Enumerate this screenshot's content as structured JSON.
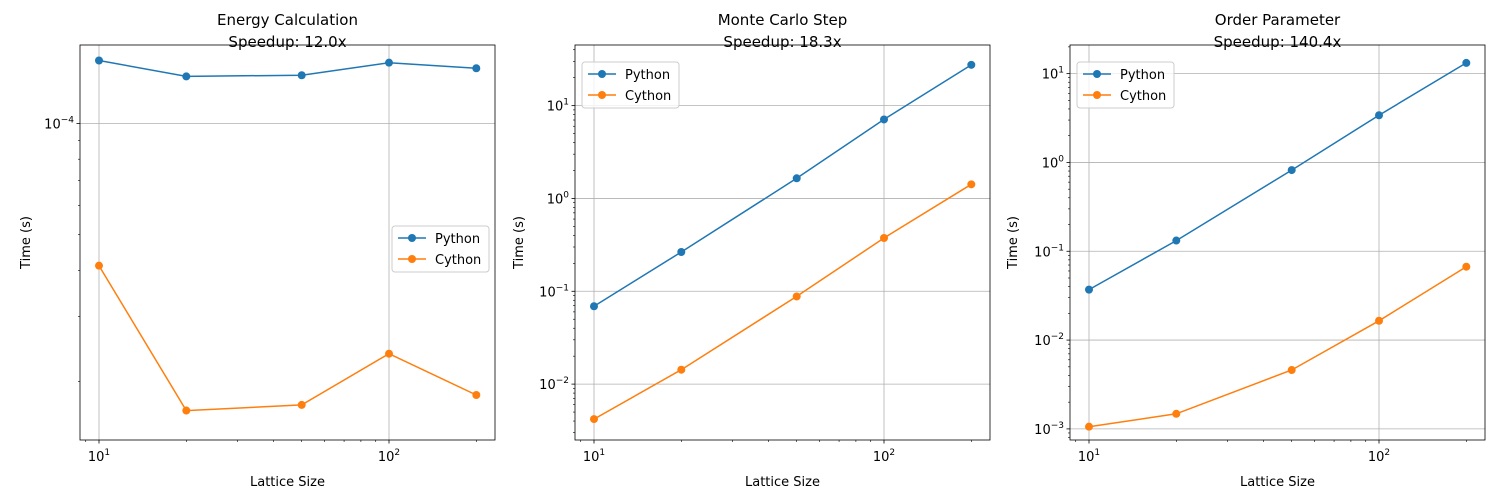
{
  "chart_data": [
    {
      "type": "line",
      "title": "Energy Calculation",
      "subtitle": "Speedup: 12.0x",
      "xlabel": "Lattice Size",
      "ylabel": "Time (s)",
      "xscale": "log",
      "yscale": "log",
      "xlim": [
        8.6,
        232
      ],
      "ylim": [
        1.39e-05,
        0.000163
      ],
      "x_ticks": [
        {
          "value": 10,
          "base": "10",
          "exp": "1"
        },
        {
          "value": 100,
          "base": "10",
          "exp": "2"
        }
      ],
      "y_ticks": [
        {
          "value": 0.0001,
          "base": "10",
          "exp": "−4"
        }
      ],
      "grid": true,
      "legend": "center right",
      "x": [
        10,
        20,
        50,
        100,
        200
      ],
      "series": [
        {
          "name": "Python",
          "color": "#1f77b4",
          "values": [
            0.000148,
            0.000134,
            0.000135,
            0.000146,
            0.000141
          ]
        },
        {
          "name": "Cython",
          "color": "#ff7f0e",
          "values": [
            4.12e-05,
            1.67e-05,
            1.73e-05,
            2.38e-05,
            1.84e-05
          ]
        }
      ]
    },
    {
      "type": "line",
      "title": "Monte Carlo Step",
      "subtitle": "Speedup: 18.3x",
      "xlabel": "Lattice Size",
      "ylabel": "Time (s)",
      "xscale": "log",
      "yscale": "log",
      "xlim": [
        8.6,
        232
      ],
      "ylim": [
        0.0025,
        45
      ],
      "x_ticks": [
        {
          "value": 10,
          "base": "10",
          "exp": "1"
        },
        {
          "value": 100,
          "base": "10",
          "exp": "2"
        }
      ],
      "y_ticks": [
        {
          "value": 0.01,
          "base": "10",
          "exp": "−2"
        },
        {
          "value": 0.1,
          "base": "10",
          "exp": "−1"
        },
        {
          "value": 1,
          "base": "10",
          "exp": "0"
        },
        {
          "value": 10,
          "base": "10",
          "exp": "1"
        }
      ],
      "grid": true,
      "legend": "upper left",
      "x": [
        10,
        20,
        50,
        100,
        200
      ],
      "series": [
        {
          "name": "Python",
          "color": "#1f77b4",
          "values": [
            0.069,
            0.265,
            1.65,
            7.1,
            27.5
          ]
        },
        {
          "name": "Cython",
          "color": "#ff7f0e",
          "values": [
            0.0042,
            0.0143,
            0.088,
            0.375,
            1.42
          ]
        }
      ]
    },
    {
      "type": "line",
      "title": "Order Parameter",
      "subtitle": "Speedup: 140.4x",
      "xlabel": "Lattice Size",
      "ylabel": "Time (s)",
      "xscale": "log",
      "yscale": "log",
      "xlim": [
        8.6,
        232
      ],
      "ylim": [
        0.00075,
        21
      ],
      "x_ticks": [
        {
          "value": 10,
          "base": "10",
          "exp": "1"
        },
        {
          "value": 100,
          "base": "10",
          "exp": "2"
        }
      ],
      "y_ticks": [
        {
          "value": 0.001,
          "base": "10",
          "exp": "−3"
        },
        {
          "value": 0.01,
          "base": "10",
          "exp": "−2"
        },
        {
          "value": 0.1,
          "base": "10",
          "exp": "−1"
        },
        {
          "value": 1,
          "base": "10",
          "exp": "0"
        },
        {
          "value": 10,
          "base": "10",
          "exp": "1"
        }
      ],
      "grid": true,
      "legend": "upper left",
      "x": [
        10,
        20,
        50,
        100,
        200
      ],
      "series": [
        {
          "name": "Python",
          "color": "#1f77b4",
          "values": [
            0.037,
            0.132,
            0.82,
            3.4,
            13.2
          ]
        },
        {
          "name": "Cython",
          "color": "#ff7f0e",
          "values": [
            0.00106,
            0.00148,
            0.0046,
            0.0165,
            0.067
          ]
        }
      ]
    }
  ]
}
